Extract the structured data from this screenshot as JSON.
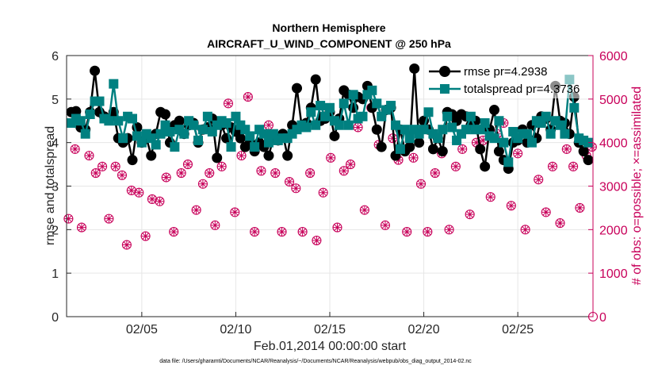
{
  "chart_data": {
    "type": "line",
    "title": "Northern Hemisphere",
    "subtitle": "AIRCRAFT_U_WIND_COMPONENT @ 250 hPa",
    "xlabel": "Feb.01,2014 00:00:00 start",
    "ylabel": "rmse and totalspread",
    "ylabel_right": "# of obs: o=possible; ×=assimilated",
    "footnote": "data file: /Users/gharamti/Documents/NCAR/Reanalysis/~/Documents/NCAR/Reanalysis/webpub/obs_diag_output_2014-02.nc",
    "xlim": [
      1,
      29
    ],
    "ylim": [
      0,
      6
    ],
    "ylim_right": [
      0,
      6000
    ],
    "x_ticks": [
      5,
      10,
      15,
      20,
      25
    ],
    "x_tick_labels": [
      "02/05",
      "02/10",
      "02/15",
      "02/20",
      "02/25"
    ],
    "y_ticks": [
      "0",
      "1",
      "2",
      "3",
      "4",
      "5",
      "6"
    ],
    "y_ticks_right": [
      "0",
      "1000",
      "2000",
      "3000",
      "4000",
      "5000",
      "6000"
    ],
    "grid": true,
    "legend_position": "top-right",
    "colors": {
      "rmse": "#000000",
      "totalspread": "#008080",
      "obs": "#c8005a",
      "grid": "#e6e6e6",
      "axis": "#262626"
    },
    "series": [
      {
        "name": "rmse",
        "legend_label": "rmse pr=4.2938",
        "x": [
          1.25,
          1.5,
          1.75,
          2.0,
          2.25,
          2.5,
          2.75,
          3.0,
          3.25,
          3.5,
          3.75,
          4.0,
          4.25,
          4.5,
          4.75,
          5.0,
          5.25,
          5.5,
          5.75,
          6.0,
          6.25,
          6.5,
          6.75,
          7.0,
          7.25,
          7.5,
          7.75,
          8.0,
          8.25,
          8.5,
          8.75,
          9.0,
          9.25,
          9.5,
          9.75,
          10.0,
          10.25,
          10.5,
          10.75,
          11.0,
          11.25,
          11.5,
          11.75,
          12.0,
          12.25,
          12.5,
          12.75,
          13.0,
          13.25,
          13.5,
          13.75,
          14.0,
          14.25,
          14.5,
          14.75,
          15.0,
          15.25,
          15.5,
          15.75,
          16.0,
          16.25,
          16.5,
          16.75,
          17.0,
          17.25,
          17.5,
          17.75,
          18.0,
          18.25,
          18.5,
          18.75,
          19.0,
          19.25,
          19.5,
          19.75,
          20.0,
          20.25,
          20.5,
          20.75,
          21.0,
          21.25,
          21.5,
          21.75,
          22.0,
          22.25,
          22.5,
          22.75,
          23.0,
          23.25,
          23.5,
          23.75,
          24.0,
          24.25,
          24.5,
          24.75,
          25.0,
          25.25,
          25.5,
          25.75,
          26.0,
          26.25,
          26.5,
          26.75,
          27.0,
          27.25,
          27.5,
          27.75,
          28.0,
          28.25,
          28.5,
          28.75
        ],
        "values": [
          4.7,
          4.72,
          4.35,
          4.3,
          4.7,
          5.65,
          4.7,
          4.6,
          4.55,
          4.7,
          4.1,
          4.0,
          4.1,
          3.6,
          4.35,
          4.0,
          4.1,
          3.7,
          4.2,
          4.7,
          4.65,
          4.0,
          4.4,
          4.5,
          4.2,
          4.4,
          4.45,
          4.0,
          4.3,
          4.35,
          4.55,
          3.65,
          4.4,
          4.1,
          4.35,
          4.25,
          4.1,
          3.9,
          4.0,
          3.8,
          4.0,
          3.9,
          3.7,
          4.1,
          4.05,
          4.2,
          3.7,
          4.4,
          5.25,
          4.4,
          4.45,
          4.8,
          5.45,
          4.5,
          4.55,
          4.7,
          4.15,
          4.55,
          5.2,
          5.1,
          4.8,
          5.05,
          5.0,
          5.3,
          4.8,
          4.3,
          3.9,
          4.75,
          4.8,
          3.7,
          4.3,
          3.8,
          3.9,
          5.7,
          4.0,
          4.5,
          4.3,
          3.85,
          4.1,
          3.8,
          4.7,
          4.65,
          4.5,
          4.65,
          4.6,
          4.4,
          4.5,
          3.85,
          3.45,
          4.3,
          4.75,
          3.8,
          3.6,
          3.4,
          4.0,
          4.05,
          4.3,
          4.0,
          4.4,
          4.1,
          4.6,
          4.55,
          4.3,
          5.3,
          4.5,
          4.45,
          4.2,
          5.05,
          4.0,
          3.8,
          3.6
        ]
      },
      {
        "name": "totalspread",
        "legend_label": "totalspread pr=4.3736",
        "x": [
          1.25,
          1.5,
          1.75,
          2.0,
          2.25,
          2.5,
          2.75,
          3.0,
          3.25,
          3.5,
          3.75,
          4.0,
          4.25,
          4.5,
          4.75,
          5.0,
          5.25,
          5.5,
          5.75,
          6.0,
          6.25,
          6.5,
          6.75,
          7.0,
          7.25,
          7.5,
          7.75,
          8.0,
          8.25,
          8.5,
          8.75,
          9.0,
          9.25,
          9.5,
          9.75,
          10.0,
          10.25,
          10.5,
          10.75,
          11.0,
          11.25,
          11.5,
          11.75,
          12.0,
          12.25,
          12.5,
          12.75,
          13.0,
          13.25,
          13.5,
          13.75,
          14.0,
          14.25,
          14.5,
          14.75,
          15.0,
          15.25,
          15.5,
          15.75,
          16.0,
          16.25,
          16.5,
          16.75,
          17.0,
          17.25,
          17.5,
          17.75,
          18.0,
          18.25,
          18.5,
          18.75,
          19.0,
          19.25,
          19.5,
          19.75,
          20.0,
          20.25,
          20.5,
          20.75,
          21.0,
          21.25,
          21.5,
          21.75,
          22.0,
          22.25,
          22.5,
          22.75,
          23.0,
          23.25,
          23.5,
          23.75,
          24.0,
          24.25,
          24.5,
          24.75,
          25.0,
          25.25,
          25.5,
          25.75,
          26.0,
          26.25,
          26.5,
          26.75,
          27.0,
          27.25,
          27.5,
          27.75,
          28.0,
          28.25,
          28.5,
          28.75
        ],
        "values": [
          4.45,
          4.55,
          4.5,
          4.2,
          4.65,
          4.95,
          4.95,
          4.55,
          4.5,
          5.35,
          4.5,
          4.1,
          4.6,
          4.55,
          4.15,
          4.0,
          4.2,
          4.1,
          3.95,
          4.2,
          4.4,
          4.25,
          3.9,
          4.3,
          4.2,
          4.5,
          4.4,
          4.05,
          4.3,
          4.6,
          4.25,
          4.4,
          4.5,
          4.45,
          3.9,
          4.6,
          4.4,
          4.3,
          4.15,
          3.9,
          4.3,
          4.2,
          4.0,
          4.2,
          4.05,
          4.1,
          4.1,
          4.2,
          4.3,
          4.4,
          4.35,
          4.7,
          4.4,
          4.85,
          4.6,
          4.8,
          4.5,
          4.4,
          4.9,
          4.4,
          5.1,
          4.55,
          4.6,
          5.1,
          5.2,
          4.9,
          4.6,
          4.75,
          4.85,
          4.4,
          3.85,
          4.3,
          4.1,
          4.3,
          4.2,
          4.3,
          4.7,
          4.2,
          4.1,
          4.3,
          4.6,
          4.35,
          4.05,
          4.2,
          4.3,
          4.6,
          4.3,
          4.3,
          4.45,
          4.15,
          4.1,
          4.5,
          4.0,
          3.55,
          4.25,
          4.1,
          4.2,
          4.2,
          4.0,
          4.5,
          4.45,
          4.6,
          4.2,
          4.5,
          4.4,
          4.2,
          5.45,
          4.8,
          4.1,
          4.05,
          4.0
        ]
      },
      {
        "name": "obs_possible",
        "marker": "o",
        "axis": "right",
        "x": [
          1.1,
          1.45,
          1.8,
          2.2,
          2.55,
          2.9,
          3.25,
          3.6,
          3.95,
          4.2,
          4.45,
          4.85,
          5.2,
          5.55,
          5.95,
          6.3,
          6.7,
          7.1,
          7.45,
          7.9,
          8.25,
          8.6,
          8.9,
          9.25,
          9.6,
          9.95,
          10.3,
          10.65,
          11.0,
          11.35,
          11.75,
          12.1,
          12.45,
          12.85,
          13.2,
          13.55,
          13.95,
          14.3,
          14.65,
          15.05,
          15.4,
          15.75,
          16.1,
          16.5,
          16.85,
          17.2,
          17.6,
          17.95,
          18.35,
          18.65,
          19.1,
          19.45,
          19.85,
          20.2,
          20.6,
          20.95,
          21.35,
          21.7,
          22.05,
          22.45,
          22.8,
          23.15,
          23.55,
          23.9,
          24.25,
          24.65,
          25.0,
          25.4,
          25.75,
          26.1,
          26.5,
          26.85,
          27.25,
          27.6,
          27.95,
          28.3,
          28.65,
          28.95
        ],
        "values": [
          2250,
          3850,
          2050,
          3700,
          3300,
          3450,
          2250,
          3450,
          3250,
          1650,
          2900,
          2850,
          1850,
          2700,
          2650,
          3200,
          1950,
          3300,
          3500,
          2450,
          3050,
          3300,
          2100,
          3450,
          4900,
          2400,
          3700,
          5050,
          1950,
          3350,
          4400,
          3300,
          1950,
          3100,
          2950,
          1950,
          3300,
          1750,
          2850,
          3650,
          2050,
          3350,
          3500,
          4350,
          2450,
          4800,
          3950,
          2100,
          4100,
          3600,
          1950,
          3650,
          3050,
          1950,
          3300,
          3750,
          2000,
          3450,
          3850,
          2350,
          4000,
          4050,
          2750,
          4200,
          4450,
          2550,
          3750,
          2000,
          4050,
          3150,
          2400,
          3450,
          2150,
          3850,
          3450,
          2500,
          3700,
          3900
        ]
      },
      {
        "name": "obs_assimilated",
        "marker": "*",
        "axis": "right",
        "x": [
          1.1,
          1.45,
          1.8,
          2.2,
          2.55,
          2.9,
          3.25,
          3.6,
          3.95,
          4.2,
          4.45,
          4.85,
          5.2,
          5.55,
          5.95,
          6.3,
          6.7,
          7.1,
          7.45,
          7.9,
          8.25,
          8.6,
          8.9,
          9.25,
          9.6,
          9.95,
          10.3,
          10.65,
          11.0,
          11.35,
          11.75,
          12.1,
          12.45,
          12.85,
          13.2,
          13.55,
          13.95,
          14.3,
          14.65,
          15.05,
          15.4,
          15.75,
          16.1,
          16.5,
          16.85,
          17.2,
          17.6,
          17.95,
          18.35,
          18.65,
          19.1,
          19.45,
          19.85,
          20.2,
          20.6,
          20.95,
          21.35,
          21.7,
          22.05,
          22.45,
          22.8,
          23.15,
          23.55,
          23.9,
          24.25,
          24.65,
          25.0,
          25.4,
          25.75,
          26.1,
          26.5,
          26.85,
          27.25,
          27.6,
          27.95,
          28.3,
          28.65,
          28.95
        ],
        "values": [
          2250,
          3850,
          2050,
          3700,
          3300,
          3450,
          2250,
          3450,
          3250,
          1650,
          2900,
          2850,
          1850,
          2700,
          2650,
          3200,
          1950,
          3300,
          3500,
          2450,
          3050,
          3300,
          2100,
          3450,
          4900,
          2400,
          3700,
          5050,
          1950,
          3350,
          4400,
          3300,
          1950,
          3100,
          2950,
          1950,
          3300,
          1750,
          2850,
          3650,
          2050,
          3350,
          3500,
          4350,
          2450,
          4800,
          3950,
          2100,
          4100,
          3600,
          1950,
          3650,
          3050,
          1950,
          3300,
          3750,
          2000,
          3450,
          3850,
          2350,
          4000,
          4050,
          2750,
          4200,
          4450,
          2550,
          3750,
          2000,
          4050,
          3150,
          2400,
          3450,
          2150,
          3850,
          3450,
          2500,
          3700,
          3900
        ]
      }
    ],
    "extra_marker": {
      "name": "obs_endpoint",
      "x": 29,
      "value": 0,
      "axis": "right"
    }
  }
}
